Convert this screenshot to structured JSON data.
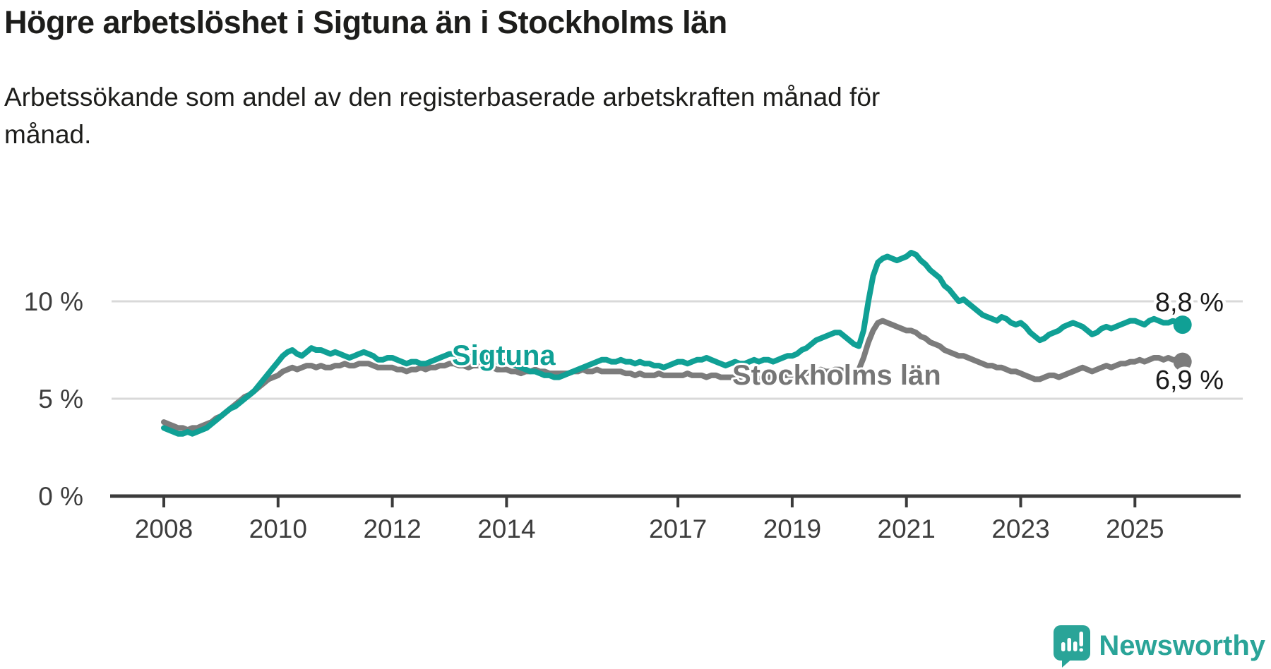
{
  "title": "Högre arbetslöshet i Sigtuna än i Stockholms län",
  "subtitle_lines": [
    "Arbetssökande som andel av den registerbaserade arbetskraften månad för",
    "månad."
  ],
  "branding": {
    "logo_text": "Newsworthy",
    "logo_color": "#2aa498",
    "logo_icon": "speech-bubble-bar-chart-exclamation"
  },
  "colors": {
    "accent_teal": "#10a095",
    "neutral_gray": "#7c7c7c",
    "axis_dark": "#3b3b3b",
    "gridline": "#d9d9d9",
    "text_dark": "#1d1d1b"
  },
  "chart_data": {
    "type": "line",
    "title": "Högre arbetslöshet i Sigtuna än i Stockholms län",
    "subtitle": "Arbetssökande som andel av den registerbaserade arbetskraften månad för månad.",
    "unit": "%",
    "x_start": {
      "year": 2008,
      "month": 1
    },
    "x_end": {
      "year": 2025,
      "month": 11
    },
    "x_frequency": "monthly",
    "x_tick_years": [
      2008,
      2010,
      2012,
      2014,
      2017,
      2019,
      2021,
      2023,
      2025
    ],
    "y_axis": {
      "ticks": [
        {
          "value": 0,
          "label": "0 %"
        },
        {
          "value": 5,
          "label": "5 %"
        },
        {
          "value": 10,
          "label": "10 %"
        }
      ],
      "ylim": [
        0,
        13.2
      ],
      "grid": "horizontal"
    },
    "legend_position": "inline-labels-on-lines",
    "series": [
      {
        "name": "Sigtuna",
        "color": "#10a095",
        "end_label": "8,8 %",
        "end_value": 8.8,
        "values": [
          3.5,
          3.4,
          3.3,
          3.2,
          3.2,
          3.3,
          3.2,
          3.3,
          3.4,
          3.5,
          3.7,
          3.9,
          4.1,
          4.3,
          4.5,
          4.6,
          4.8,
          5.0,
          5.2,
          5.4,
          5.7,
          6.0,
          6.3,
          6.6,
          6.9,
          7.2,
          7.4,
          7.5,
          7.3,
          7.2,
          7.4,
          7.6,
          7.5,
          7.5,
          7.4,
          7.3,
          7.4,
          7.3,
          7.2,
          7.1,
          7.2,
          7.3,
          7.4,
          7.3,
          7.2,
          7.0,
          7.0,
          7.1,
          7.1,
          7.0,
          6.9,
          6.8,
          6.9,
          6.9,
          6.8,
          6.8,
          6.9,
          7.0,
          7.1,
          7.2,
          7.3,
          7.3,
          7.2,
          7.2,
          7.1,
          7.2,
          7.3,
          7.2,
          7.1,
          7.0,
          6.9,
          6.9,
          6.9,
          6.8,
          6.7,
          6.6,
          6.5,
          6.4,
          6.4,
          6.3,
          6.2,
          6.2,
          6.1,
          6.1,
          6.2,
          6.3,
          6.4,
          6.5,
          6.6,
          6.7,
          6.8,
          6.9,
          7.0,
          7.0,
          6.9,
          6.9,
          7.0,
          6.9,
          6.9,
          6.8,
          6.9,
          6.8,
          6.8,
          6.7,
          6.7,
          6.6,
          6.7,
          6.8,
          6.9,
          6.9,
          6.8,
          6.9,
          7.0,
          7.0,
          7.1,
          7.0,
          6.9,
          6.8,
          6.7,
          6.8,
          6.9,
          6.8,
          6.8,
          6.9,
          7.0,
          6.9,
          7.0,
          7.0,
          6.9,
          7.0,
          7.1,
          7.2,
          7.2,
          7.3,
          7.5,
          7.6,
          7.8,
          8.0,
          8.1,
          8.2,
          8.3,
          8.4,
          8.4,
          8.2,
          8.0,
          7.8,
          7.7,
          8.5,
          10.0,
          11.3,
          12.0,
          12.2,
          12.3,
          12.2,
          12.1,
          12.2,
          12.3,
          12.5,
          12.4,
          12.1,
          11.9,
          11.6,
          11.4,
          11.2,
          10.8,
          10.6,
          10.3,
          10.0,
          10.1,
          9.9,
          9.7,
          9.5,
          9.3,
          9.2,
          9.1,
          9.0,
          9.2,
          9.1,
          8.9,
          8.8,
          8.9,
          8.7,
          8.4,
          8.2,
          8.0,
          8.1,
          8.3,
          8.4,
          8.5,
          8.7,
          8.8,
          8.9,
          8.8,
          8.7,
          8.5,
          8.3,
          8.4,
          8.6,
          8.7,
          8.6,
          8.7,
          8.8,
          8.9,
          9.0,
          9.0,
          8.9,
          8.8,
          9.0,
          9.1,
          9.0,
          8.9,
          8.9,
          9.0,
          8.9,
          8.8
        ]
      },
      {
        "name": "Stockholms län",
        "color": "#7c7c7c",
        "end_label": "6,9 %",
        "end_value": 6.9,
        "values": [
          3.8,
          3.7,
          3.6,
          3.5,
          3.5,
          3.4,
          3.5,
          3.5,
          3.6,
          3.7,
          3.8,
          4.0,
          4.1,
          4.3,
          4.5,
          4.7,
          4.9,
          5.1,
          5.2,
          5.4,
          5.6,
          5.8,
          6.0,
          6.1,
          6.2,
          6.4,
          6.5,
          6.6,
          6.5,
          6.6,
          6.7,
          6.7,
          6.6,
          6.7,
          6.6,
          6.6,
          6.7,
          6.7,
          6.8,
          6.7,
          6.7,
          6.8,
          6.8,
          6.8,
          6.7,
          6.6,
          6.6,
          6.6,
          6.6,
          6.5,
          6.5,
          6.4,
          6.5,
          6.5,
          6.6,
          6.5,
          6.6,
          6.6,
          6.7,
          6.7,
          6.8,
          6.8,
          6.7,
          6.7,
          6.6,
          6.7,
          6.7,
          6.7,
          6.6,
          6.6,
          6.5,
          6.5,
          6.5,
          6.4,
          6.4,
          6.3,
          6.4,
          6.4,
          6.5,
          6.4,
          6.4,
          6.3,
          6.3,
          6.3,
          6.3,
          6.3,
          6.4,
          6.4,
          6.5,
          6.4,
          6.4,
          6.5,
          6.4,
          6.4,
          6.4,
          6.4,
          6.4,
          6.3,
          6.3,
          6.2,
          6.3,
          6.2,
          6.2,
          6.2,
          6.3,
          6.2,
          6.2,
          6.2,
          6.2,
          6.2,
          6.3,
          6.2,
          6.2,
          6.2,
          6.1,
          6.2,
          6.2,
          6.1,
          6.1,
          6.1,
          6.1,
          6.1,
          6.2,
          6.1,
          6.1,
          6.0,
          6.1,
          6.1,
          6.2,
          6.1,
          6.2,
          6.2,
          6.2,
          6.2,
          6.3,
          6.3,
          6.4,
          6.4,
          6.5,
          6.4,
          6.4,
          6.5,
          6.5,
          6.4,
          6.4,
          6.4,
          6.5,
          7.1,
          7.9,
          8.5,
          8.9,
          9.0,
          8.9,
          8.8,
          8.7,
          8.6,
          8.5,
          8.5,
          8.4,
          8.2,
          8.1,
          7.9,
          7.8,
          7.7,
          7.5,
          7.4,
          7.3,
          7.2,
          7.2,
          7.1,
          7.0,
          6.9,
          6.8,
          6.7,
          6.7,
          6.6,
          6.6,
          6.5,
          6.4,
          6.4,
          6.3,
          6.2,
          6.1,
          6.0,
          6.0,
          6.1,
          6.2,
          6.2,
          6.1,
          6.2,
          6.3,
          6.4,
          6.5,
          6.6,
          6.5,
          6.4,
          6.5,
          6.6,
          6.7,
          6.6,
          6.7,
          6.8,
          6.8,
          6.9,
          6.9,
          7.0,
          6.9,
          7.0,
          7.1,
          7.1,
          7.0,
          7.1,
          7.0,
          7.0,
          6.9
        ]
      }
    ]
  }
}
